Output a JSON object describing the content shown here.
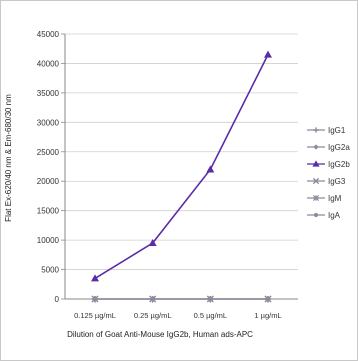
{
  "chart_data": {
    "type": "line",
    "title": "",
    "xlabel": "Dilution of Goat Anti-Mouse IgG2b, Human ads-APC",
    "ylabel": "Flat Ex-620/40 nm & Em-680/30 nm",
    "categories": [
      "0.125 µg/mL",
      "0.25 µg/mL",
      "0.5 µg/mL",
      "1 µg/mL"
    ],
    "ylim": [
      0,
      45000
    ],
    "yticks": [
      0,
      5000,
      10000,
      15000,
      20000,
      25000,
      30000,
      35000,
      40000,
      45000
    ],
    "ytick_labels": [
      "0",
      "5000",
      "10000",
      "15000",
      "20000",
      "25000",
      "30000",
      "35000",
      "40000",
      "45000"
    ],
    "grid": true,
    "legend_position": "right",
    "series": [
      {
        "name": "IgG1",
        "values": [
          0,
          0,
          0,
          0
        ],
        "color": "#8c8c9c",
        "marker": "plus"
      },
      {
        "name": "IgG2a",
        "values": [
          0,
          0,
          0,
          0
        ],
        "color": "#8c8c9c",
        "marker": "diamond"
      },
      {
        "name": "IgG2b",
        "values": [
          3500,
          9500,
          22000,
          41500
        ],
        "color": "#5a2ca8",
        "marker": "triangle"
      },
      {
        "name": "IgG3",
        "values": [
          0,
          0,
          0,
          0
        ],
        "color": "#8c8c9c",
        "marker": "cross"
      },
      {
        "name": "IgM",
        "values": [
          0,
          0,
          0,
          0
        ],
        "color": "#8c8c9c",
        "marker": "star"
      },
      {
        "name": "IgA",
        "values": [
          0,
          0,
          0,
          0
        ],
        "color": "#8c8c9c",
        "marker": "dot"
      }
    ]
  }
}
